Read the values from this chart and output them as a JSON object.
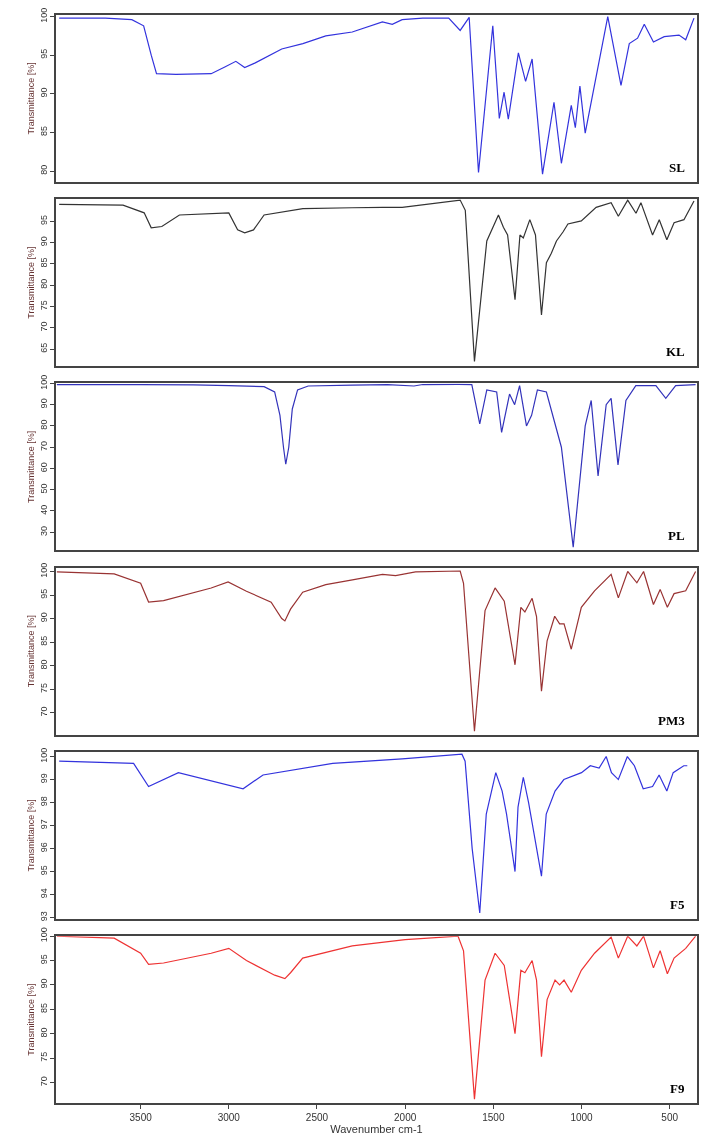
{
  "chart_data": [
    {
      "type": "line",
      "ylabel": "Transmittance [%]",
      "xlim": [
        3980,
        345
      ],
      "ylim": [
        78.6,
        100.2
      ],
      "yticks": [
        80,
        85,
        90,
        95,
        100
      ],
      "tick_labels": "y",
      "series": [
        {
          "name": "SL",
          "color": "#3333dd",
          "x": [
            3962,
            3700,
            3550,
            3483,
            3440,
            3410,
            3300,
            3100,
            3020,
            2960,
            2910,
            2850,
            2700,
            2580,
            2450,
            2300,
            2129,
            2073,
            2017,
            1900,
            1753,
            1688,
            1637,
            1584,
            1503,
            1466,
            1439,
            1415,
            1358,
            1317,
            1280,
            1221,
            1156,
            1114,
            1058,
            1035,
            1009,
            979,
            851,
            776,
            729,
            682,
            644,
            592,
            531,
            447,
            409,
            362
          ],
          "values": [
            99.8,
            99.8,
            99.6,
            98.8,
            95,
            92.6,
            92.5,
            92.6,
            93.5,
            94.2,
            93.4,
            94,
            95.8,
            96.5,
            97.5,
            98,
            99.3,
            99.0,
            99.6,
            99.8,
            99.8,
            98.2,
            99.9,
            79.8,
            98.8,
            86.8,
            90.2,
            86.7,
            95.3,
            91.6,
            94.5,
            79.6,
            88.9,
            81.0,
            88.5,
            85.6,
            91.0,
            84.9,
            100.0,
            91.1,
            96.5,
            97.2,
            99.0,
            96.7,
            97.4,
            97.6,
            97.0,
            99.8
          ]
        }
      ]
    },
    {
      "type": "line",
      "ylabel": "Transmittance [%]",
      "xlim": [
        3980,
        345
      ],
      "ylim": [
        61,
        100.2
      ],
      "yticks": [
        65,
        70,
        75,
        80,
        85,
        90,
        95
      ],
      "tick_labels": "y",
      "series": [
        {
          "name": "KL",
          "color": "#333333",
          "x": [
            3962,
            3600,
            3480,
            3440,
            3380,
            3280,
            3000,
            2950,
            2910,
            2860,
            2800,
            2580,
            2300,
            2129,
            2017,
            1688,
            1659,
            1607,
            1537,
            1471,
            1443,
            1419,
            1377,
            1349,
            1330,
            1293,
            1261,
            1227,
            1199,
            1171,
            1142,
            1105,
            1077,
            1001,
            917,
            832,
            791,
            738,
            691,
            663,
            597,
            559,
            516,
            475,
            419,
            362
          ],
          "values": [
            99,
            98.8,
            97,
            93.5,
            93.8,
            96.5,
            97,
            93,
            92.3,
            93,
            96.5,
            98,
            98.2,
            98.3,
            98.3,
            100,
            97.6,
            62.1,
            90.4,
            96.5,
            93.6,
            91.8,
            76.6,
            91.8,
            91.1,
            95.4,
            91.8,
            73.0,
            85.3,
            87.5,
            90.4,
            92.5,
            94.4,
            95.1,
            98.3,
            99.4,
            96.2,
            100,
            96.9,
            99.4,
            91.8,
            95.4,
            90.7,
            94.7,
            95.4,
            99.8
          ]
        }
      ]
    },
    {
      "type": "line",
      "ylabel": "Transmittance [%]",
      "xlim": [
        3980,
        345
      ],
      "ylim": [
        21.5,
        100
      ],
      "yticks": [
        30,
        40,
        50,
        60,
        70,
        80,
        90,
        100
      ],
      "tick_labels": "y",
      "series": [
        {
          "name": "PL",
          "color": "#3333bb",
          "x": [
            3975,
            3500,
            3200,
            3000,
            2800,
            2740,
            2710,
            2690,
            2677,
            2660,
            2640,
            2610,
            2550,
            2300,
            2100,
            1950,
            1900,
            1700,
            1622,
            1577,
            1537,
            1481,
            1453,
            1408,
            1379,
            1351,
            1312,
            1283,
            1250,
            1199,
            1114,
            1047,
            979,
            945,
            906,
            860,
            832,
            793,
            748,
            692,
            578,
            522,
            466,
            353
          ],
          "values": [
            99.5,
            99.5,
            99.3,
            99,
            98.5,
            96,
            85,
            70,
            62,
            70,
            88,
            97,
            98.8,
            99.2,
            99.5,
            98.8,
            99.5,
            99.6,
            99.5,
            81,
            97,
            96,
            77,
            95,
            90,
            99,
            80,
            85,
            97,
            96,
            70,
            23,
            80,
            92,
            56.5,
            90,
            93,
            61.7,
            92,
            99,
            99,
            93,
            99,
            99.5
          ]
        }
      ]
    },
    {
      "type": "line",
      "ylabel": "Transmittance [%]",
      "xlim": [
        3980,
        345
      ],
      "ylim": [
        65.4,
        100.8
      ],
      "yticks": [
        70,
        75,
        80,
        85,
        90,
        95,
        100
      ],
      "tick_labels": "y",
      "series": [
        {
          "name": "PM3",
          "color": "#993333",
          "x": [
            3975,
            3650,
            3500,
            3455,
            3370,
            3100,
            3004,
            2900,
            2760,
            2700,
            2682,
            2650,
            2581,
            2450,
            2299,
            2129,
            2054,
            1941,
            1688,
            1669,
            1607,
            1547,
            1490,
            1438,
            1377,
            1344,
            1321,
            1280,
            1255,
            1227,
            1195,
            1152,
            1124,
            1099,
            1058,
            1001,
            926,
            832,
            791,
            738,
            686,
            648,
            592,
            554,
            513,
            475,
            409,
            353
          ],
          "values": [
            99.9,
            99.5,
            97.5,
            93.5,
            93.8,
            96.5,
            97.8,
            95.8,
            93.5,
            90,
            89.5,
            92,
            95.6,
            97.2,
            98.2,
            99.4,
            99.1,
            99.9,
            100.1,
            97.5,
            66.1,
            91.7,
            96.5,
            93.7,
            80.2,
            92.4,
            91.4,
            94.3,
            90.4,
            74.6,
            85.3,
            90.5,
            88.9,
            88.9,
            83.5,
            92.4,
            95.9,
            99.4,
            94.4,
            100.0,
            97.6,
            100.0,
            93.0,
            96.2,
            92.4,
            95.3,
            95.9,
            100.0
          ]
        }
      ]
    },
    {
      "type": "line",
      "ylabel": "Transmittance [%]",
      "xlim": [
        3980,
        345
      ],
      "ylim": [
        92.95,
        100.2
      ],
      "yticks": [
        93,
        94,
        95,
        96,
        97,
        98,
        99,
        100
      ],
      "tick_labels": "y",
      "series": [
        {
          "name": "F5",
          "color": "#3333dd",
          "x": [
            3962,
            3540,
            3455,
            3286,
            2919,
            2806,
            2411,
            2017,
            1678,
            1660,
            1620,
            1577,
            1540,
            1486,
            1450,
            1425,
            1377,
            1360,
            1330,
            1300,
            1227,
            1200,
            1150,
            1100,
            1000,
            950,
            900,
            860,
            830,
            791,
            740,
            700,
            650,
            597,
            560,
            516,
            480,
            420,
            400
          ],
          "values": [
            99.8,
            99.7,
            98.7,
            99.3,
            98.6,
            99.2,
            99.7,
            99.9,
            100.1,
            99.8,
            96,
            93.2,
            97.5,
            99.3,
            98.5,
            97.5,
            95.0,
            97.8,
            99.1,
            98.0,
            94.8,
            97.5,
            98.5,
            99.0,
            99.3,
            99.6,
            99.5,
            100,
            99.3,
            99.0,
            100,
            99.6,
            98.6,
            98.7,
            99.2,
            98.5,
            99.3,
            99.6,
            99.6
          ]
        }
      ]
    },
    {
      "type": "line",
      "ylabel": "Transmittance [%]",
      "xlabel": "Wavenumber cm-1",
      "xlim": [
        3980,
        345
      ],
      "xticks": [
        3500,
        3000,
        2500,
        2000,
        1500,
        1000,
        500
      ],
      "ylim": [
        65.8,
        100
      ],
      "yticks": [
        70,
        75,
        80,
        85,
        90,
        95,
        100
      ],
      "series": [
        {
          "name": "F9",
          "color": "#ee3333",
          "x": [
            3975,
            3650,
            3500,
            3455,
            3370,
            3100,
            3000,
            2900,
            2740,
            2682,
            2650,
            2581,
            2300,
            2000,
            1700,
            1669,
            1607,
            1547,
            1490,
            1438,
            1377,
            1344,
            1321,
            1280,
            1255,
            1227,
            1195,
            1150,
            1124,
            1099,
            1058,
            1001,
            926,
            832,
            791,
            738,
            686,
            648,
            592,
            554,
            513,
            475,
            409,
            353
          ],
          "values": [
            100,
            99.6,
            96.5,
            94.2,
            94.5,
            96.5,
            97.5,
            95,
            92,
            91.3,
            92.5,
            95.5,
            98,
            99.3,
            100,
            97,
            66.6,
            91,
            96.5,
            94,
            80,
            93,
            92.5,
            95,
            91,
            75.3,
            87,
            91,
            90,
            91,
            88.5,
            93,
            96.5,
            99.8,
            95.5,
            100,
            98,
            100,
            93.5,
            97,
            92.3,
            95.5,
            97.5,
            100
          ]
        }
      ]
    }
  ]
}
